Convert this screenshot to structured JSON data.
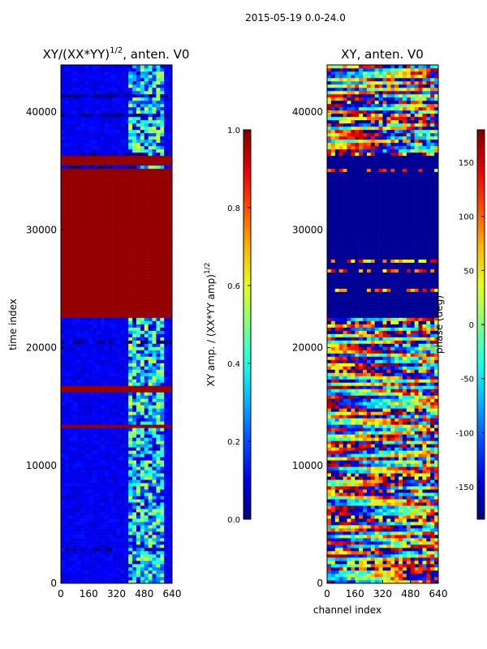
{
  "figure_title": "2015-05-19 0.0-24.0",
  "chart_data": [
    {
      "type": "heatmap",
      "title": "XY/(XX*YY)^{1/2}, anten. V0",
      "title_main": "XY/(XX*YY)",
      "title_exp": "1/2",
      "title_tail": ", anten. V0",
      "xlabel": "",
      "ylabel": "time index",
      "xlim": [
        0,
        640
      ],
      "ylim": [
        0,
        44000
      ],
      "xticks": [
        0,
        160,
        320,
        480,
        640
      ],
      "yticks": [
        0,
        10000,
        20000,
        30000,
        40000
      ],
      "colorbar": {
        "label": "XY amp. / (XX*YY amp)^{1/2}",
        "label_main": "XY amp. / (XX*YY amp)",
        "label_exp": "1/2",
        "range": [
          0.0,
          1.0
        ],
        "ticks": [
          "0.0",
          "0.2",
          "0.4",
          "0.6",
          "0.8",
          "1.0"
        ],
        "colormap": "jet"
      },
      "saturated_bands": [
        [
          22500,
          36500
        ],
        [
          16200,
          16700
        ],
        [
          13200,
          13600
        ]
      ],
      "active_channel_range": [
        400,
        600
      ]
    },
    {
      "type": "heatmap",
      "title": "XY, anten. V0",
      "xlabel": "channel index",
      "ylabel": "",
      "xlim": [
        0,
        640
      ],
      "ylim": [
        0,
        44000
      ],
      "xticks": [
        0,
        160,
        320,
        480,
        640
      ],
      "yticks": [
        0,
        10000,
        20000,
        30000,
        40000
      ],
      "colorbar": {
        "label": "phase (deg)",
        "range": [
          -180,
          180
        ],
        "ticks": [
          "-150",
          "-100",
          "-50",
          "0",
          "50",
          "100",
          "150"
        ],
        "colormap": "jet"
      },
      "flat_band": [
        22500,
        36500
      ]
    }
  ],
  "colors": {
    "low": "#00008f",
    "high": "#800000"
  }
}
